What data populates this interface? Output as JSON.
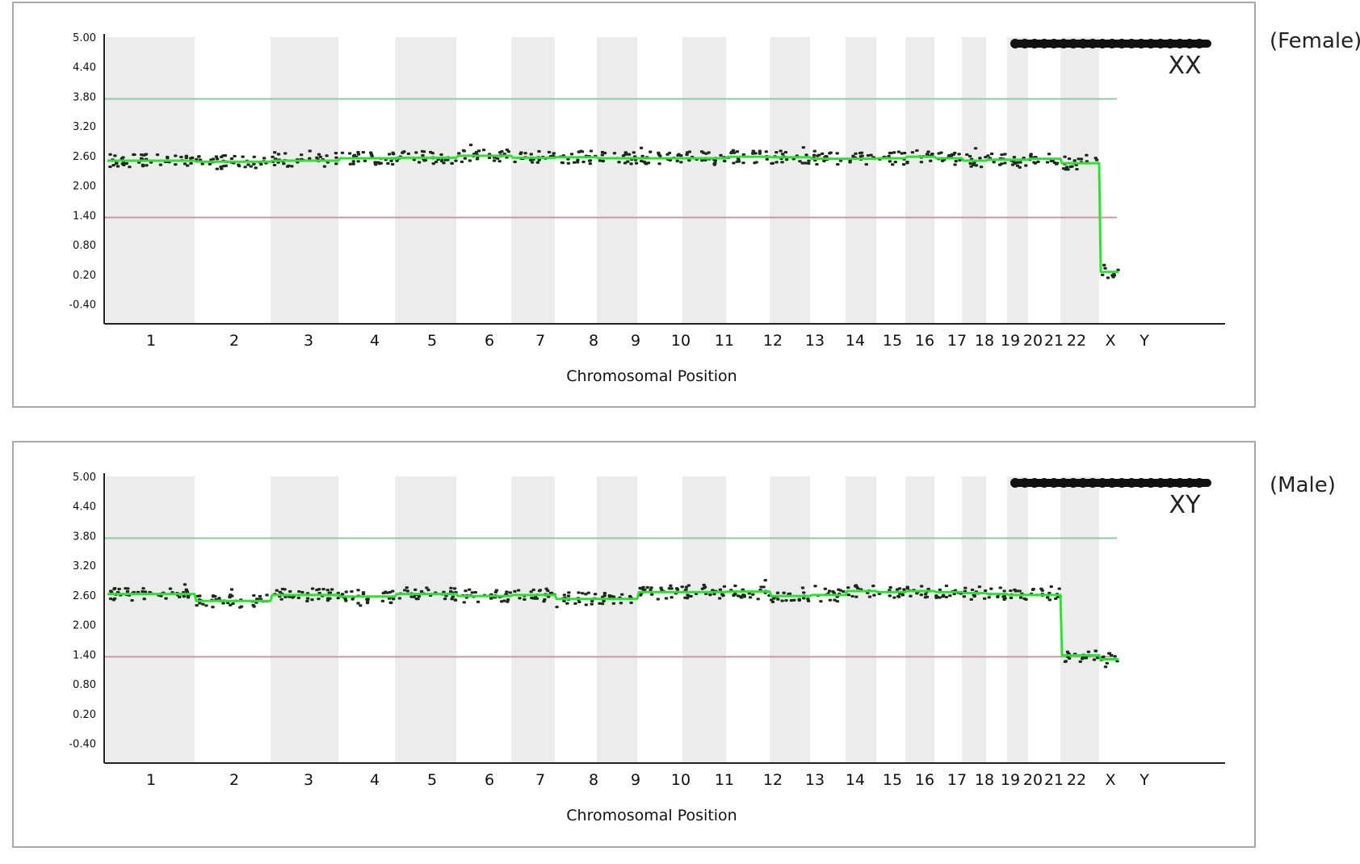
{
  "chart_data": [
    {
      "type": "scatter",
      "panel_label": "(Female)",
      "karyotype_label": "XX",
      "xlabel": "Chromosomal Position",
      "ylabel": "",
      "ylim": [
        -0.8,
        5.0
      ],
      "yticks": [
        "5.00",
        "4.40",
        "3.80",
        "3.20",
        "2.60",
        "2.00",
        "1.40",
        "0.80",
        "0.20",
        "-0.40"
      ],
      "reference_lines": [
        {
          "value": 3.75,
          "color": "#8fc9a4"
        },
        {
          "value": 1.35,
          "color": "#c59aa4"
        }
      ],
      "categories": [
        "1",
        "2",
        "3",
        "4",
        "5",
        "6",
        "7",
        "8",
        "9",
        "10",
        "11",
        "12",
        "13",
        "14",
        "15",
        "16",
        "17",
        "18",
        "19",
        "20",
        "21",
        "22",
        "X",
        "Y"
      ],
      "values": [
        2.5,
        2.48,
        2.5,
        2.55,
        2.56,
        2.6,
        2.56,
        2.57,
        2.55,
        2.55,
        2.55,
        2.58,
        2.57,
        2.54,
        2.54,
        2.55,
        2.58,
        2.55,
        2.5,
        2.52,
        2.52,
        2.54,
        2.45,
        0.25
      ],
      "grid": false,
      "series_color": "#2ee032",
      "point_color": "#1d2a1d"
    },
    {
      "type": "scatter",
      "panel_label": "(Male)",
      "karyotype_label": "XY",
      "xlabel": "Chromosomal Position",
      "ylabel": "",
      "ylim": [
        -0.8,
        5.0
      ],
      "yticks": [
        "5.00",
        "4.40",
        "3.80",
        "3.20",
        "2.60",
        "2.00",
        "1.40",
        "0.80",
        "0.20",
        "-0.40"
      ],
      "reference_lines": [
        {
          "value": 3.75,
          "color": "#8fc9a4"
        },
        {
          "value": 1.35,
          "color": "#c59aa4"
        }
      ],
      "categories": [
        "1",
        "2",
        "3",
        "4",
        "5",
        "6",
        "7",
        "8",
        "9",
        "10",
        "11",
        "12",
        "13",
        "14",
        "15",
        "16",
        "17",
        "18",
        "19",
        "20",
        "21",
        "22",
        "X",
        "Y"
      ],
      "values": [
        2.62,
        2.48,
        2.6,
        2.57,
        2.62,
        2.58,
        2.6,
        2.52,
        2.52,
        2.66,
        2.66,
        2.67,
        2.58,
        2.6,
        2.68,
        2.66,
        2.68,
        2.66,
        2.64,
        2.62,
        2.6,
        2.6,
        1.38,
        1.3
      ],
      "grid": false,
      "series_color": "#2ee032",
      "point_color": "#1d2a1d"
    }
  ]
}
